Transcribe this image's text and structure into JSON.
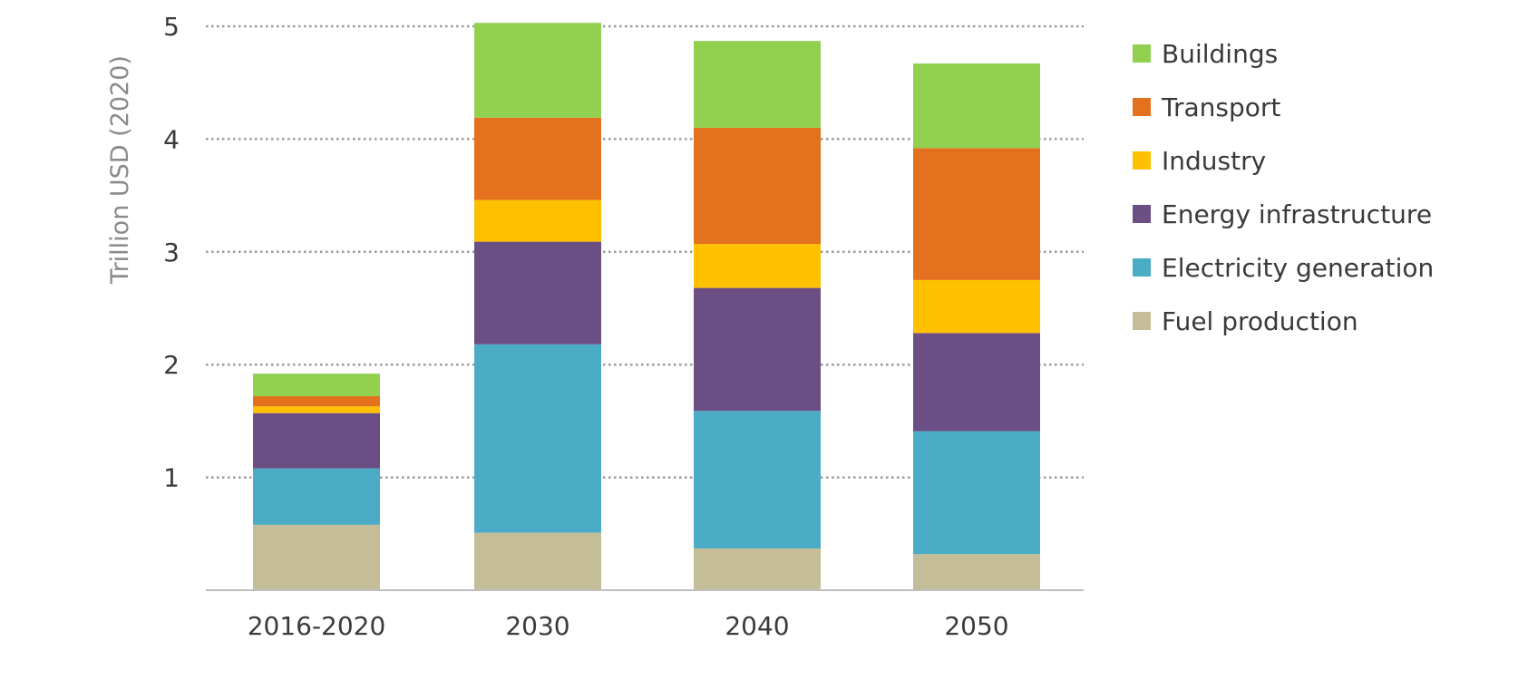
{
  "chart_data": {
    "type": "bar",
    "stacked": true,
    "title": "",
    "xlabel": "",
    "ylabel": "Trillion USD (2020)",
    "ylim": [
      0,
      5
    ],
    "yticks": [
      1,
      2,
      3,
      4,
      5
    ],
    "grid": "horizontal dotted",
    "legend_position": "right",
    "categories": [
      "2016-2020",
      "2030",
      "2040",
      "2050"
    ],
    "series": [
      {
        "name": "Fuel production",
        "color": "#c4bd97",
        "values": [
          0.58,
          0.51,
          0.37,
          0.32
        ]
      },
      {
        "name": "Electricity generation",
        "color": "#4bacc6",
        "values": [
          0.5,
          1.67,
          1.22,
          1.09
        ]
      },
      {
        "name": "Energy infrastructure",
        "color": "#6a4e84",
        "values": [
          0.49,
          0.91,
          1.09,
          0.87
        ]
      },
      {
        "name": "Industry",
        "color": "#ffc000",
        "values": [
          0.06,
          0.37,
          0.39,
          0.47
        ]
      },
      {
        "name": "Transport",
        "color": "#e3711d",
        "values": [
          0.09,
          0.73,
          1.03,
          1.17
        ]
      },
      {
        "name": "Buildings",
        "color": "#92d050",
        "values": [
          0.2,
          0.84,
          0.77,
          0.75
        ]
      }
    ]
  }
}
